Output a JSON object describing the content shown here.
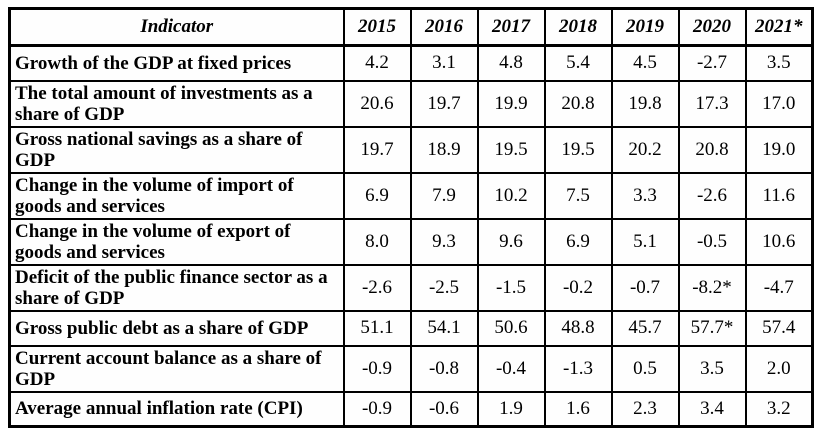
{
  "colors": {
    "border": "#000000",
    "text": "#000000",
    "background": "#ffffff"
  },
  "table": {
    "header": {
      "indicator_label": "Indicator",
      "years": [
        "2015",
        "2016",
        "2017",
        "2018",
        "2019",
        "2020",
        "2021*"
      ]
    },
    "rows": [
      {
        "indicator": "Growth of the GDP at fixed prices",
        "values": [
          "4.2",
          "3.1",
          "4.8",
          "5.4",
          "4.5",
          "-2.7",
          "3.5"
        ]
      },
      {
        "indicator": "The total amount of investments as a share of GDP",
        "values": [
          "20.6",
          "19.7",
          "19.9",
          "20.8",
          "19.8",
          "17.3",
          "17.0"
        ]
      },
      {
        "indicator": "Gross national savings as a share of GDP",
        "values": [
          "19.7",
          "18.9",
          "19.5",
          "19.5",
          "20.2",
          "20.8",
          "19.0"
        ]
      },
      {
        "indicator": "Change in the volume of import of goods and services",
        "values": [
          "6.9",
          "7.9",
          "10.2",
          "7.5",
          "3.3",
          "-2.6",
          "11.6"
        ]
      },
      {
        "indicator": "Change in the volume of export of goods and services",
        "values": [
          "8.0",
          "9.3",
          "9.6",
          "6.9",
          "5.1",
          "-0.5",
          "10.6"
        ]
      },
      {
        "indicator": "Deficit of the public finance sector as a share of GDP",
        "values": [
          "-2.6",
          "-2.5",
          "-1.5",
          "-0.2",
          "-0.7",
          "-8.2*",
          "-4.7"
        ]
      },
      {
        "indicator": "Gross public debt as a share of GDP",
        "values": [
          "51.1",
          "54.1",
          "50.6",
          "48.8",
          "45.7",
          "57.7*",
          "57.4"
        ]
      },
      {
        "indicator": "Current account balance as a share of GDP",
        "values": [
          "-0.9",
          "-0.8",
          "-0.4",
          "-1.3",
          "0.5",
          "3.5",
          "2.0"
        ]
      },
      {
        "indicator": "Average annual inflation rate (CPI)",
        "values": [
          "-0.9",
          "-0.6",
          "1.9",
          "1.6",
          "2.3",
          "3.4",
          "3.2"
        ]
      }
    ]
  }
}
